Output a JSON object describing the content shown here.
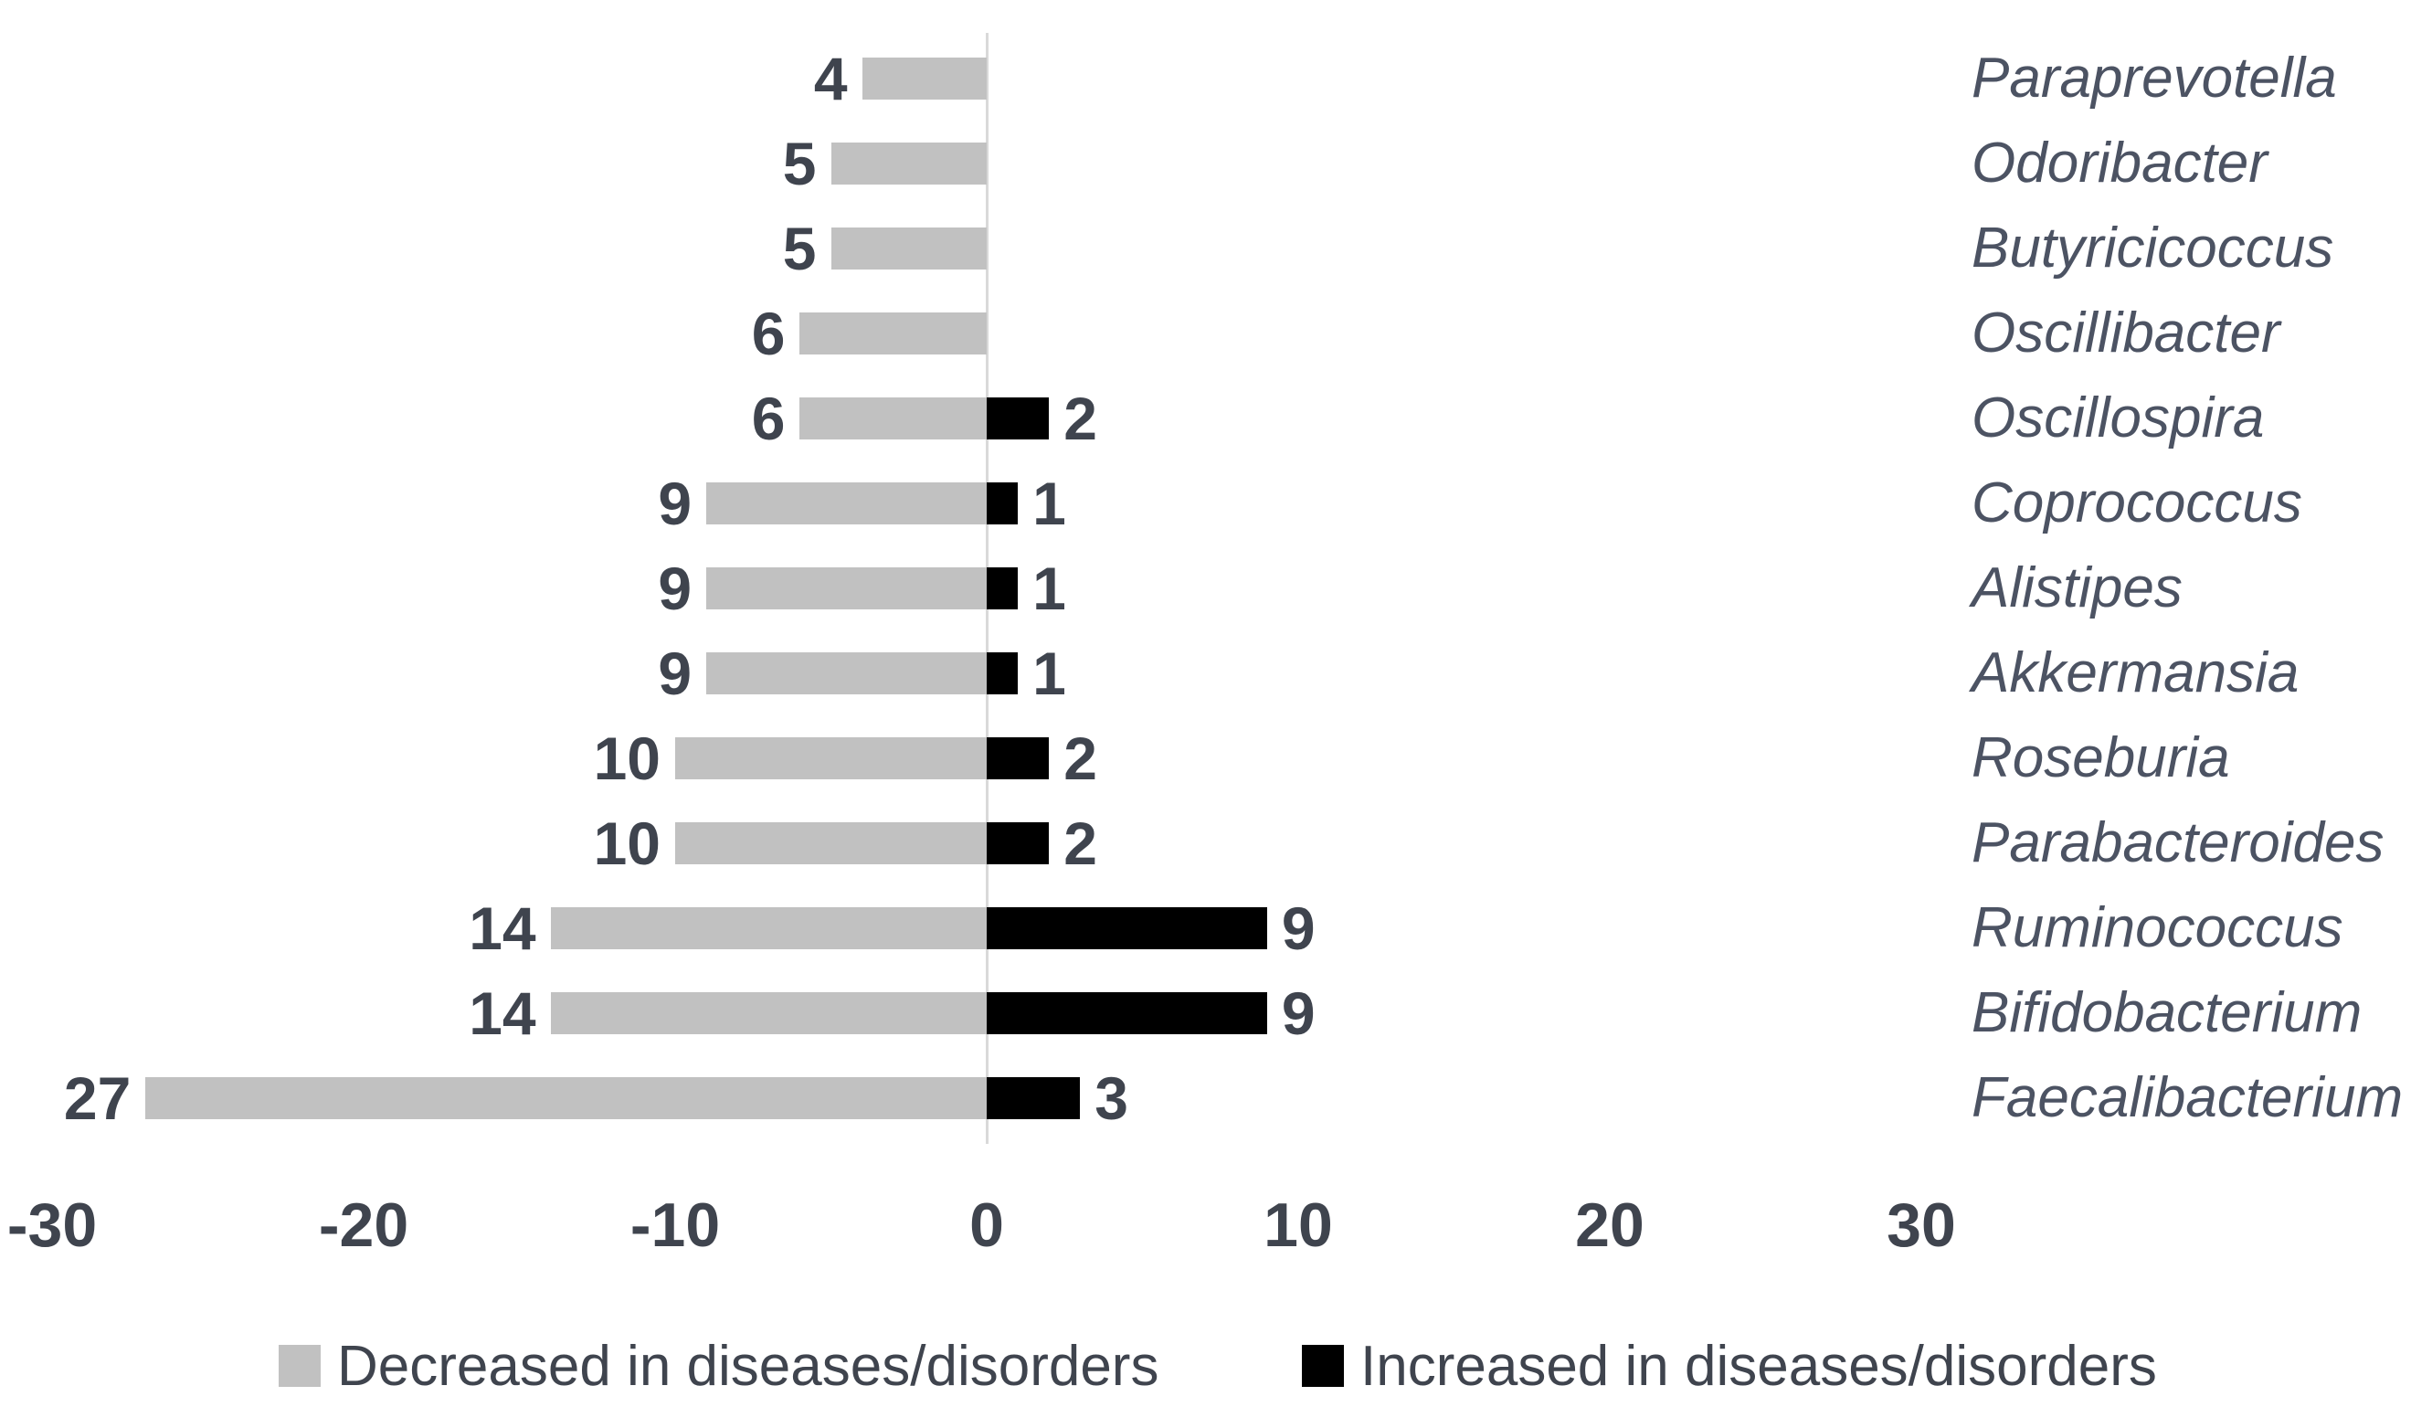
{
  "chart_data": {
    "type": "bar",
    "orientation": "horizontal-diverging",
    "title": "",
    "xlabel": "",
    "ylabel": "",
    "categories": [
      "Paraprevotella",
      "Odoribacter",
      "Butyricicoccus",
      "Oscillibacter",
      "Oscillospira",
      "Coprococcus",
      "Alistipes",
      "Akkermansia",
      "Roseburia",
      "Parabacteroides",
      "Ruminococcus",
      "Bifidobacterium",
      "Faecalibacterium"
    ],
    "series": [
      {
        "name": "Decreased in diseases/disorders",
        "direction": "left",
        "color": "#c1c1c1",
        "values": [
          4,
          5,
          5,
          6,
          6,
          9,
          9,
          9,
          10,
          10,
          14,
          14,
          27
        ],
        "data_labels": [
          "4",
          "5",
          "5",
          "6",
          "6",
          "9",
          "9",
          "9",
          "10",
          "10",
          "14",
          "14",
          "27"
        ]
      },
      {
        "name": "Increased in diseases/disorders",
        "direction": "right",
        "color": "#000000",
        "values": [
          0,
          0,
          0,
          0,
          2,
          1,
          1,
          1,
          2,
          2,
          9,
          9,
          3
        ],
        "data_labels": [
          "",
          "",
          "",
          "",
          "2",
          "1",
          "1",
          "1",
          "2",
          "2",
          "9",
          "9",
          "3"
        ]
      }
    ],
    "x_ticks": [
      -30,
      -20,
      -10,
      0,
      10,
      20,
      30
    ],
    "axis_range": [
      -30,
      30
    ],
    "grid": false,
    "legend_position": "bottom",
    "axis_line_color": "#d9d9d9",
    "number_text_color": "#3f444e",
    "category_text_color": "#4c5363",
    "legend_text_color": "#3f444e"
  }
}
